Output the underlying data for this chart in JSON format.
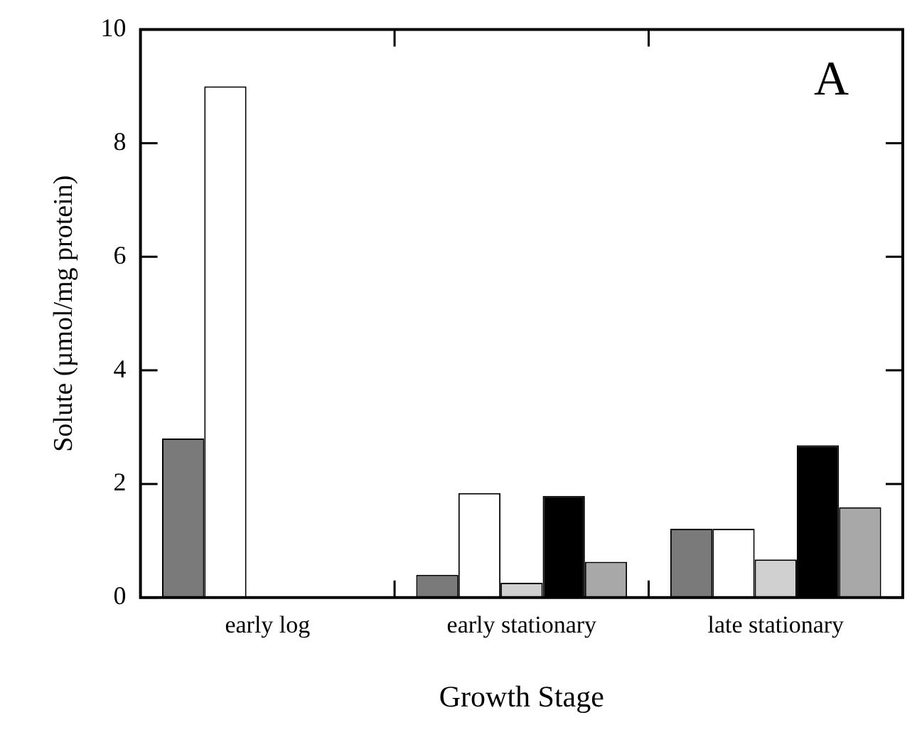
{
  "chart_data": {
    "type": "bar",
    "xlabel": "Growth Stage",
    "ylabel": "Solute (µmol/mg protein)",
    "categories": [
      "early log",
      "early stationary",
      "late stationary"
    ],
    "series": [
      {
        "color": "#7a7a7a",
        "values": [
          2.8,
          0.4,
          1.21
        ]
      },
      {
        "color": "#ffffff",
        "values": [
          9.0,
          1.84,
          1.21
        ]
      },
      {
        "color": "#d0d0d0",
        "values": [
          null,
          0.26,
          0.67
        ]
      },
      {
        "color": "#000000",
        "values": [
          null,
          1.79,
          2.68
        ]
      },
      {
        "color": "#a8a8a8",
        "values": [
          null,
          0.63,
          1.59
        ]
      }
    ],
    "ylim": [
      0,
      10
    ],
    "yticks": [
      0,
      2,
      4,
      6,
      8,
      10
    ],
    "grid": false,
    "legend": false,
    "annotations": [
      "A"
    ]
  }
}
